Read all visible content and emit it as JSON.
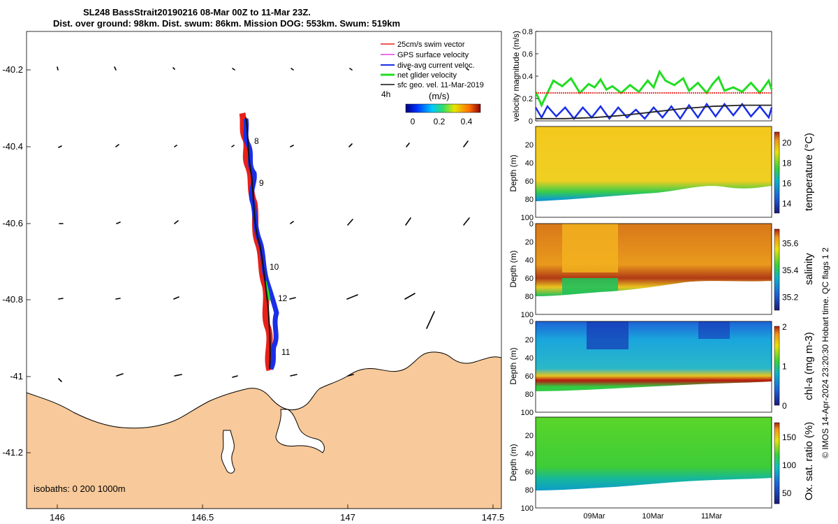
{
  "title_line1": "SL248 BassStrait20190216 08-Mar 00Z to 11-Mar 23Z.",
  "title_line2": "Dist. over ground: 98km. Dist. swum: 86km. Mission DOG: 553km. Swum: 519km",
  "footer": "© IMOS 14-Apr-2024 23:20:30 Hobart time. QC flags 1  2",
  "map": {
    "isobaths": "isobaths: 0   200  1000m",
    "lat_ticks": [
      "-40.2",
      "-40.4",
      "-40.6",
      "-40.8",
      "-41",
      "-41.2"
    ],
    "lon_ticks": [
      "146",
      "146.5",
      "147",
      "147.5"
    ],
    "day_labels": [
      "8",
      "9",
      "10",
      "12",
      "11"
    ],
    "legend": [
      "25cm/s swim vector",
      "GPS surface velocity",
      "dive-avg current veloc.",
      "net glider velocity",
      "sfc geo. vel. 11-Mar-2019"
    ],
    "legend_colors": [
      "#e8201a",
      "#e040e0",
      "#1a2ee8",
      "#22dd22",
      "#111111"
    ],
    "legend_4h": "4h",
    "colorbar_title": "(m/s)",
    "colorbar_ticks": [
      "0",
      "0.2",
      "0.4"
    ]
  },
  "chart_data": [
    {
      "type": "line",
      "title": "",
      "ylabel": "velocity magnitude (m/s)",
      "ylim": [
        0,
        0.8
      ],
      "yticks": [
        "0",
        "0.2",
        "0.4",
        "0.6",
        "0.8"
      ],
      "xlim": [
        0,
        4
      ],
      "series": [
        {
          "name": "net glider velocity",
          "color": "#22dd22",
          "x": [
            0,
            0.1,
            0.2,
            0.3,
            0.45,
            0.6,
            0.75,
            0.9,
            1.0,
            1.1,
            1.2,
            1.3,
            1.45,
            1.6,
            1.75,
            1.9,
            2.0,
            2.1,
            2.2,
            2.35,
            2.5,
            2.6,
            2.75,
            2.9,
            3.0,
            3.1,
            3.2,
            3.35,
            3.5,
            3.65,
            3.8,
            3.95,
            4.0
          ],
          "values": [
            0.26,
            0.14,
            0.25,
            0.36,
            0.31,
            0.38,
            0.25,
            0.33,
            0.3,
            0.37,
            0.28,
            0.31,
            0.25,
            0.32,
            0.26,
            0.36,
            0.3,
            0.44,
            0.36,
            0.32,
            0.38,
            0.27,
            0.34,
            0.25,
            0.33,
            0.39,
            0.27,
            0.3,
            0.26,
            0.34,
            0.25,
            0.36,
            0.28
          ]
        },
        {
          "name": "dive-avg current veloc.",
          "color": "#1a2ee8",
          "x": [
            0,
            0.1,
            0.2,
            0.35,
            0.5,
            0.65,
            0.8,
            0.95,
            1.1,
            1.25,
            1.4,
            1.55,
            1.7,
            1.85,
            2.0,
            2.15,
            2.3,
            2.45,
            2.6,
            2.75,
            2.9,
            3.05,
            3.2,
            3.35,
            3.5,
            3.65,
            3.8,
            3.95,
            4.0
          ],
          "values": [
            0.12,
            0.03,
            0.13,
            0.04,
            0.12,
            0.02,
            0.12,
            0.03,
            0.13,
            0.02,
            0.12,
            0.03,
            0.1,
            0.02,
            0.12,
            0.03,
            0.13,
            0.02,
            0.14,
            0.03,
            0.15,
            0.04,
            0.15,
            0.05,
            0.15,
            0.04,
            0.13,
            0.03,
            0.12
          ]
        },
        {
          "name": "sfc geo. vel.",
          "color": "#222222",
          "x": [
            0,
            0.5,
            1.0,
            1.5,
            2.0,
            2.5,
            3.0,
            3.5,
            4.0
          ],
          "values": [
            0.02,
            0.02,
            0.03,
            0.05,
            0.08,
            0.11,
            0.13,
            0.14,
            0.14
          ]
        },
        {
          "name": "25cm/s swim vector",
          "color": "#e8201a",
          "x": [
            0,
            4
          ],
          "values": [
            0.25,
            0.25
          ]
        }
      ]
    },
    {
      "type": "heatmap",
      "ylabel": "Depth (m)",
      "clabel": "temperature (°C)",
      "ylim": [
        0,
        100
      ],
      "yticks": [
        "20",
        "40",
        "60",
        "80",
        "100"
      ],
      "cticks": [
        "14",
        "16",
        "18",
        "20"
      ],
      "clim": [
        13,
        21
      ]
    },
    {
      "type": "heatmap",
      "ylabel": "Depth (m)",
      "clabel": "salinity",
      "ylim": [
        0,
        100
      ],
      "yticks": [
        "0",
        "20",
        "40",
        "60",
        "80",
        "100"
      ],
      "cticks": [
        "35.2",
        "35.4",
        "35.6"
      ],
      "clim": [
        35.1,
        35.7
      ]
    },
    {
      "type": "heatmap",
      "ylabel": "Depth (m)",
      "clabel": "chl-a (mg m-3)",
      "ylim": [
        0,
        100
      ],
      "yticks": [
        "0",
        "20",
        "40",
        "60",
        "80",
        "100"
      ],
      "cticks": [
        "0",
        "1",
        "2"
      ],
      "clim": [
        0,
        2
      ]
    },
    {
      "type": "heatmap",
      "ylabel": "Depth (m)",
      "clabel": "Ox. sat. ratio (%)",
      "ylim": [
        0,
        100
      ],
      "yticks": [
        "20",
        "40",
        "60",
        "80",
        "100"
      ],
      "cticks": [
        "50",
        "100",
        "150"
      ],
      "clim": [
        30,
        175
      ],
      "xticks": [
        "09Mar",
        "10Mar",
        "11Mar"
      ]
    }
  ]
}
